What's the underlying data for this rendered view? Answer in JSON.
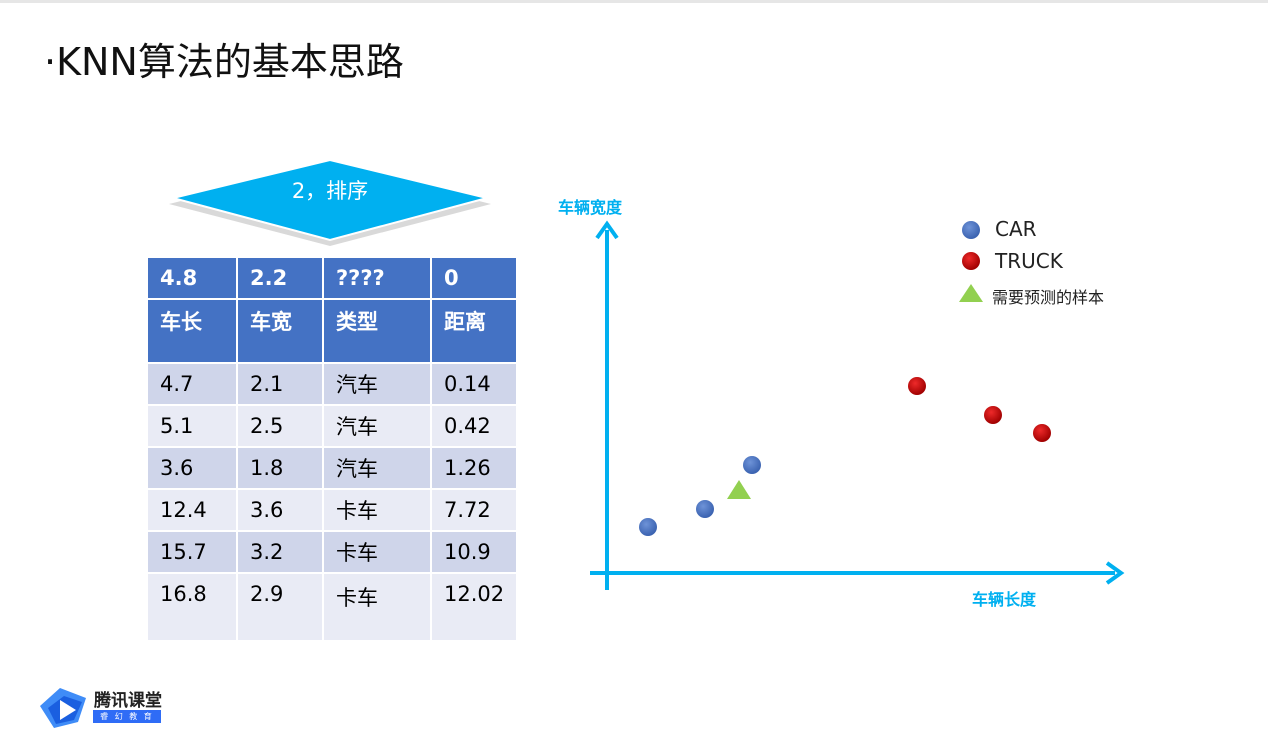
{
  "slide": {
    "title": "·KNN算法的基本思路",
    "step_label": "2，排序"
  },
  "table": {
    "query": [
      "4.8",
      "2.2",
      "????",
      "0"
    ],
    "headers": [
      "车长",
      "车宽",
      "类型",
      "距离"
    ],
    "rows": [
      [
        "4.7",
        "2.1",
        "汽车",
        "0.14"
      ],
      [
        "5.1",
        "2.5",
        "汽车",
        "0.42"
      ],
      [
        "3.6",
        "1.8",
        "汽车",
        "1.26"
      ],
      [
        "12.4",
        "3.6",
        "卡车",
        "7.72"
      ],
      [
        "15.7",
        "3.2",
        "卡车",
        "10.9"
      ],
      [
        "16.8",
        "2.9",
        "卡车",
        "12.02"
      ]
    ]
  },
  "chart": {
    "y_axis_label": "车辆宽度",
    "x_axis_label": "车辆长度",
    "legend": {
      "car": "CAR",
      "truck": "TRUCK",
      "sample": "需要预测的样本"
    },
    "colors": {
      "axis": "#00b0f0",
      "car": "#4472c4",
      "truck": "#c00000",
      "sample": "#92d050"
    }
  },
  "logo": {
    "name": "腾讯课堂",
    "sub": "睿 幻 教 育"
  }
}
